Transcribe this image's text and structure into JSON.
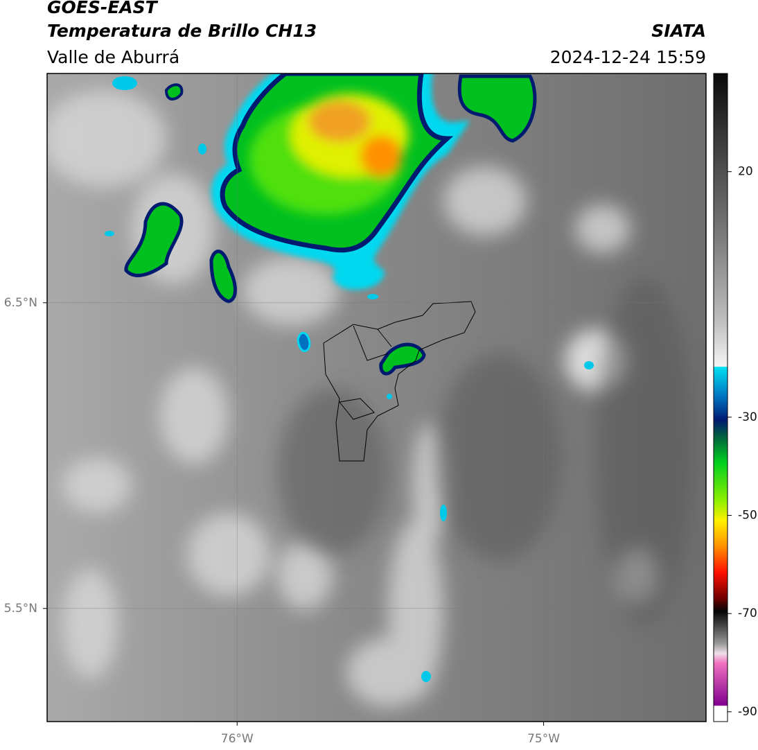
{
  "header": {
    "satellite": "GOES-EAST",
    "product": "Temperatura de Brillo CH13",
    "region": "Valle de Aburrá",
    "source": "SIATA",
    "datetime": "2024-12-24 15:59"
  },
  "map": {
    "lon_range": [
      -76.62,
      -74.47
    ],
    "lat_range": [
      5.13,
      7.25
    ],
    "lon_ticks": [
      {
        "value": -76,
        "label": "76°W"
      },
      {
        "value": -75,
        "label": "75°W"
      }
    ],
    "lat_ticks": [
      {
        "value": 6.5,
        "label": "6.5°N"
      },
      {
        "value": 5.5,
        "label": "5.5°N"
      }
    ]
  },
  "colorbar": {
    "range": [
      -92,
      40
    ],
    "ticks": [
      20,
      -30,
      -50,
      -70,
      -90
    ]
  }
}
